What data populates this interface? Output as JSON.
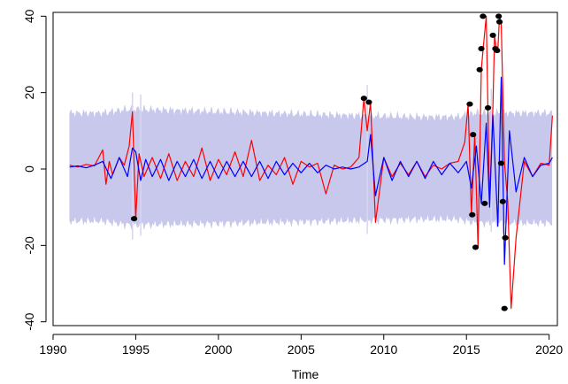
{
  "chart_data": {
    "type": "line",
    "title": "",
    "xlabel": "Time",
    "ylabel": "",
    "xlim": [
      1990,
      2020.5
    ],
    "ylim": [
      -41,
      41
    ],
    "x_ticks": [
      1990,
      1995,
      2000,
      2005,
      2010,
      2015,
      2020
    ],
    "x_tick_labels": [
      "1990",
      "1995",
      "2000",
      "2005",
      "2010",
      "2015",
      "2020"
    ],
    "y_ticks": [
      -40,
      -20,
      0,
      20,
      40
    ],
    "y_tick_labels": [
      "-40",
      "-20",
      "0",
      "20",
      "40"
    ],
    "grid": false,
    "legend": "none",
    "colors": {
      "band": "#c8c8ec",
      "band_spike": "#d6d6f0",
      "observed": "#ff0000",
      "fitted": "#0000ff",
      "outlier": "#000000",
      "axis": "#000000",
      "background": "#ffffff"
    },
    "band": {
      "x_start": 1991.0,
      "x_end": 2020.2,
      "upper": [
        [
          1991.0,
          14.5
        ],
        [
          1993.0,
          14.5
        ],
        [
          1994.5,
          15.5
        ],
        [
          1995.0,
          15.5
        ],
        [
          2007.0,
          14.0
        ],
        [
          2012.0,
          13.5
        ],
        [
          2014.5,
          13.5
        ],
        [
          2015.5,
          14.5
        ],
        [
          2018.0,
          14.5
        ],
        [
          2020.2,
          14.5
        ]
      ],
      "lower": [
        [
          1991.0,
          -13.5
        ],
        [
          1993.0,
          -13.5
        ],
        [
          1994.5,
          -14.5
        ],
        [
          1995.0,
          -14.5
        ],
        [
          2007.0,
          -13.5
        ],
        [
          2012.0,
          -13.0
        ],
        [
          2014.5,
          -13.0
        ],
        [
          2015.5,
          -14.0
        ],
        [
          2018.0,
          -14.0
        ],
        [
          2020.2,
          -14.0
        ]
      ],
      "spikes": [
        [
          1994.8,
          20.0,
          -18.5
        ],
        [
          1995.3,
          19.5,
          -17.5
        ],
        [
          2009.0,
          22.0,
          -17.0
        ],
        [
          2016.5,
          21.0,
          -16.5
        ],
        [
          2017.2,
          22.0,
          -17.0
        ]
      ]
    },
    "series": [
      {
        "name": "",
        "role": "observed",
        "x": [
          1991.0,
          1991.5,
          1992.0,
          1992.5,
          1993.0,
          1993.2,
          1993.4,
          1993.6,
          1994.0,
          1994.3,
          1994.6,
          1994.8,
          1995.0,
          1995.2,
          1995.5,
          1996.0,
          1996.5,
          1997.0,
          1997.5,
          1998.0,
          1998.5,
          1999.0,
          1999.5,
          2000.0,
          2000.5,
          2001.0,
          2001.5,
          2002.0,
          2002.5,
          2003.0,
          2003.5,
          2004.0,
          2004.5,
          2005.0,
          2005.5,
          2006.0,
          2006.5,
          2007.0,
          2007.5,
          2008.0,
          2008.5,
          2008.8,
          2009.0,
          2009.2,
          2009.5,
          2010.0,
          2010.5,
          2011.0,
          2011.5,
          2012.0,
          2012.5,
          2013.0,
          2013.5,
          2014.0,
          2014.5,
          2014.9,
          2015.1,
          2015.3,
          2015.5,
          2015.7,
          2015.9,
          2016.0,
          2016.2,
          2016.4,
          2016.6,
          2016.7,
          2016.8,
          2016.9,
          2017.0,
          2017.1,
          2017.3,
          2017.5,
          2017.7,
          2018.0,
          2018.5,
          2019.0,
          2019.5,
          2020.0,
          2020.2
        ],
        "y": [
          1.0,
          0.5,
          1.2,
          0.8,
          5.0,
          -4.0,
          2.0,
          -1.5,
          3.0,
          1.0,
          6.0,
          15.0,
          -13.0,
          4.0,
          -2.0,
          3.0,
          -2.5,
          4.0,
          -3.0,
          2.0,
          -2.0,
          5.5,
          -3.0,
          2.5,
          -1.5,
          4.5,
          -2.0,
          7.5,
          -3.0,
          1.0,
          -1.5,
          3.0,
          -4.0,
          2.0,
          0.5,
          1.5,
          -6.5,
          1.0,
          0.0,
          0.5,
          3.0,
          18.5,
          10.0,
          17.5,
          -14.0,
          3.0,
          -2.0,
          1.5,
          -1.5,
          2.0,
          -2.0,
          1.0,
          0.0,
          1.5,
          2.0,
          7.0,
          17.0,
          -12.0,
          9.0,
          -20.5,
          26.0,
          31.0,
          40.0,
          -9.0,
          16.0,
          35.0,
          31.5,
          31.0,
          40.0,
          38.5,
          1.5,
          -8.5,
          -36.5,
          -18.0,
          2.0,
          -2.0,
          1.5,
          1.0,
          14.0
        ]
      },
      {
        "name": "",
        "role": "fitted",
        "x": [
          1991.0,
          1991.5,
          1992.0,
          1992.5,
          1993.0,
          1993.5,
          1994.0,
          1994.5,
          1994.8,
          1995.0,
          1995.3,
          1995.6,
          1996.0,
          1996.5,
          1997.0,
          1997.5,
          1998.0,
          1998.5,
          1999.0,
          1999.5,
          2000.0,
          2000.5,
          2001.0,
          2001.5,
          2002.0,
          2002.5,
          2003.0,
          2003.5,
          2004.0,
          2004.5,
          2005.0,
          2005.5,
          2006.0,
          2006.5,
          2007.0,
          2007.5,
          2008.0,
          2008.5,
          2009.0,
          2009.2,
          2009.5,
          2010.0,
          2010.5,
          2011.0,
          2011.5,
          2012.0,
          2012.5,
          2013.0,
          2013.5,
          2014.0,
          2014.5,
          2015.0,
          2015.3,
          2015.6,
          2015.9,
          2016.2,
          2016.4,
          2016.6,
          2016.9,
          2017.1,
          2017.3,
          2017.6,
          2018.0,
          2018.5,
          2019.0,
          2019.5,
          2020.0,
          2020.2
        ],
        "y": [
          0.5,
          0.8,
          0.3,
          1.0,
          2.0,
          -2.5,
          3.0,
          -2.0,
          5.5,
          4.5,
          -3.0,
          2.5,
          -2.0,
          2.5,
          -3.0,
          2.0,
          -2.0,
          2.5,
          -2.5,
          2.0,
          -2.5,
          2.0,
          -2.0,
          2.0,
          -2.0,
          2.0,
          -2.5,
          2.0,
          -1.5,
          1.5,
          -1.0,
          1.5,
          -1.0,
          1.0,
          0.0,
          0.5,
          0.0,
          0.5,
          2.0,
          9.0,
          -7.0,
          3.0,
          -3.0,
          2.0,
          -2.0,
          2.0,
          -2.5,
          2.0,
          -1.5,
          1.5,
          -1.0,
          2.0,
          -5.0,
          6.0,
          -9.0,
          12.0,
          -10.0,
          14.0,
          -15.0,
          24.0,
          -25.0,
          10.0,
          -6.0,
          3.0,
          -2.0,
          1.0,
          1.5,
          3.0
        ]
      }
    ],
    "outlier_points": {
      "x": [
        1994.9,
        2008.8,
        2009.1,
        2015.2,
        2015.35,
        2015.4,
        2015.55,
        2015.8,
        2015.9,
        2016.0,
        2016.1,
        2016.3,
        2016.6,
        2016.75,
        2016.85,
        2016.95,
        2017.0,
        2017.1,
        2017.2,
        2017.3,
        2017.35
      ],
      "y": [
        -13.0,
        18.5,
        17.5,
        17.0,
        -12.0,
        9.0,
        -20.5,
        26.0,
        31.5,
        40.0,
        -9.0,
        16.0,
        35.0,
        31.5,
        31.0,
        40.0,
        38.5,
        1.5,
        -8.5,
        -36.5,
        -18.0
      ]
    }
  }
}
